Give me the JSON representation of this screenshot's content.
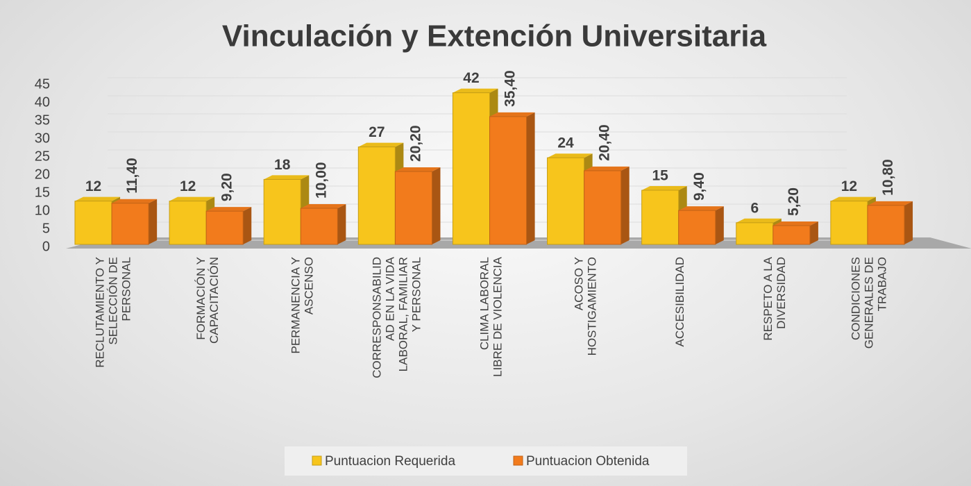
{
  "chart_data": {
    "type": "bar",
    "title": "Vinculación y Extención Universitaria",
    "categories": [
      "RECLUTAMIENTO Y\nSELECCIÓN DE\nPERSONAL",
      "FORMACIÓN Y\nCAPACITACIÓN",
      "PERMANENCIA Y\nASCENSO",
      "CORRESPONSABILID\nAD EN LA VIDA\nLABORAL, FAMILIAR\nY PERSONAL",
      "CLIMA LABORAL\nLIBRE DE VIOLENCIA",
      "ACOSO Y\nHOSTIGAMIENTO",
      "ACCESIBILIDAD",
      "RESPETO A LA\nDIVERSIDAD",
      "CONDICIONES\nGENERALES DE\nTRABAJO"
    ],
    "series": [
      {
        "name": "Puntuacion Requerida",
        "color": "#f7c51c",
        "values": [
          12,
          12,
          18,
          27,
          42,
          24,
          15,
          6,
          12
        ]
      },
      {
        "name": "Puntuacion Obtenida",
        "color": "#f27b1c",
        "values": [
          11.4,
          9.2,
          10,
          20.2,
          35.4,
          20.4,
          9.4,
          5.2,
          10.8
        ],
        "value_labels": [
          "11,40",
          "9,20",
          "10,00",
          "20,20",
          "35,40",
          "20,40",
          "9,40",
          "5,20",
          "10,80"
        ]
      }
    ],
    "ylim": [
      0,
      45
    ],
    "yticks": [
      0,
      5,
      10,
      15,
      20,
      25,
      30,
      35,
      40,
      45
    ],
    "grid": true,
    "legend": "bottom"
  }
}
